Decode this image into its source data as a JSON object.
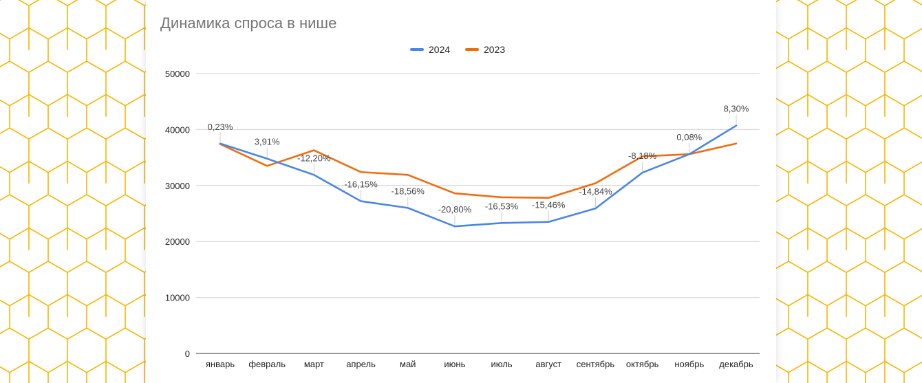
{
  "colors": {
    "series_2024": "#4a86e8",
    "series_2023": "#f26c0d",
    "honeycomb": "#f7b500",
    "grid": "#d0d0d0",
    "title": "#757575"
  },
  "chart_data": {
    "type": "line",
    "title": "Динамика спроса в нише",
    "xlabel": "",
    "ylabel": "",
    "ylim": [
      0,
      50000
    ],
    "yticks": [
      "0",
      "10000",
      "20000",
      "30000",
      "40000",
      "50000"
    ],
    "grid": true,
    "legend_position": "top",
    "categories": [
      "январь",
      "февраль",
      "март",
      "апрель",
      "май",
      "июнь",
      "июль",
      "август",
      "сентябрь",
      "октябрь",
      "ноябрь",
      "декабрь"
    ],
    "series": [
      {
        "name": "2024",
        "color": "#4a86e8",
        "values": [
          37500,
          34800,
          31900,
          27200,
          26000,
          22700,
          23300,
          23500,
          25900,
          32300,
          35600,
          40700
        ]
      },
      {
        "name": "2023",
        "color": "#f26c0d",
        "values": [
          37400,
          33500,
          36300,
          32400,
          31900,
          28600,
          27900,
          27800,
          30400,
          35200,
          35600,
          37500
        ]
      }
    ],
    "data_labels": [
      "0,23%",
      "3,91%",
      "-12,20%",
      "-16,15%",
      "-18,56%",
      "-20,80%",
      "-16,53%",
      "-15,46%",
      "-14,84%",
      "-8,18%",
      "0,08%",
      "8,30%"
    ]
  }
}
